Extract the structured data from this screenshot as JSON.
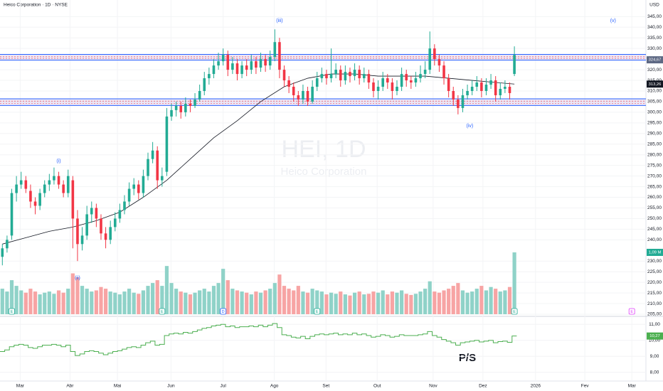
{
  "chart_data": {
    "type": "candlestick",
    "title": "Heico Corporation · 1D · NYSE",
    "currency": "USD",
    "watermark": "HEI, 1D",
    "watermark_sub": "Heico Corporation",
    "up_color": "#22ab94",
    "down_color": "#f23645",
    "volume_up_color": "#8fd2c8",
    "volume_down_color": "#f7a4a4",
    "ylim": [
      205,
      352.8
    ],
    "yticks": [
      {
        "value": 205,
        "label": "205,00"
      },
      {
        "value": 210,
        "label": "210,00"
      },
      {
        "value": 215,
        "label": "215,00"
      },
      {
        "value": 220,
        "label": "220,00"
      },
      {
        "value": 225,
        "label": "225,00"
      },
      {
        "value": 230,
        "label": "230,00"
      },
      {
        "value": 240,
        "label": "240,00"
      },
      {
        "value": 245,
        "label": "245,00"
      },
      {
        "value": 250,
        "label": "250,00"
      },
      {
        "value": 255,
        "label": "255,00"
      },
      {
        "value": 260,
        "label": "260,00"
      },
      {
        "value": 265,
        "label": "265,00"
      },
      {
        "value": 270,
        "label": "270,00"
      },
      {
        "value": 275,
        "label": "275,00"
      },
      {
        "value": 280,
        "label": "280,00"
      },
      {
        "value": 285,
        "label": "285,00"
      },
      {
        "value": 290,
        "label": "290,00"
      },
      {
        "value": 295,
        "label": "295,00"
      },
      {
        "value": 300,
        "label": "300,00"
      },
      {
        "value": 305,
        "label": "305,00"
      },
      {
        "value": 310,
        "label": "310,00"
      },
      {
        "value": 315,
        "label": "315,00"
      },
      {
        "value": 320,
        "label": "320,00"
      },
      {
        "value": 325,
        "label": "325,00"
      },
      {
        "value": 330,
        "label": "330,00"
      },
      {
        "value": 335,
        "label": "335,00"
      },
      {
        "value": 340,
        "label": "340,00"
      },
      {
        "value": 345,
        "label": "345,00"
      }
    ],
    "xlim": [
      -0.5,
      137
    ],
    "xticks": [
      {
        "value": 3.8,
        "label": "Mar"
      },
      {
        "value": 14.4,
        "label": "Abr"
      },
      {
        "value": 24.5,
        "label": "Mai"
      },
      {
        "value": 35.9,
        "label": "Jun"
      },
      {
        "value": 47,
        "label": "Jul"
      },
      {
        "value": 57.9,
        "label": "Ago"
      },
      {
        "value": 68.9,
        "label": "Set"
      },
      {
        "value": 79.8,
        "label": "Out"
      },
      {
        "value": 91.7,
        "label": "Nov"
      },
      {
        "value": 102.3,
        "label": "Dez"
      },
      {
        "value": 113.5,
        "label": "2026"
      },
      {
        "value": 124,
        "label": "Fev"
      },
      {
        "value": 134,
        "label": "Mar"
      }
    ],
    "candles": [
      [
        232,
        238,
        228,
        236
      ],
      [
        236,
        242,
        234,
        240
      ],
      [
        242,
        264,
        240,
        262
      ],
      [
        262,
        270,
        258,
        266
      ],
      [
        266,
        272,
        264,
        268
      ],
      [
        268,
        270,
        262,
        264
      ],
      [
        263,
        266,
        255,
        258
      ],
      [
        258,
        260,
        252,
        256
      ],
      [
        256,
        264,
        254,
        262
      ],
      [
        262,
        268,
        260,
        266
      ],
      [
        266,
        271,
        263,
        268
      ],
      [
        268,
        274,
        266,
        270
      ],
      [
        270,
        272,
        264,
        266
      ],
      [
        266,
        268,
        260,
        262
      ],
      [
        262,
        273,
        260,
        270
      ],
      [
        268,
        270,
        236,
        250
      ],
      [
        250,
        254,
        230,
        238
      ],
      [
        238,
        246,
        235,
        242
      ],
      [
        242,
        256,
        240,
        252
      ],
      [
        252,
        258,
        248,
        255
      ],
      [
        255,
        257,
        246,
        250
      ],
      [
        250,
        252,
        240,
        243
      ],
      [
        243,
        246,
        236,
        240
      ],
      [
        240,
        249,
        238,
        246
      ],
      [
        246,
        253,
        244,
        250
      ],
      [
        250,
        257,
        248,
        254
      ],
      [
        254,
        261,
        252,
        258
      ],
      [
        258,
        267,
        256,
        264
      ],
      [
        264,
        269,
        261,
        266
      ],
      [
        266,
        268,
        259,
        262
      ],
      [
        262,
        273,
        260,
        270
      ],
      [
        270,
        281,
        268,
        278
      ],
      [
        278,
        286,
        276,
        282
      ],
      [
        282,
        284,
        264,
        268
      ],
      [
        268,
        274,
        265,
        270
      ],
      [
        272,
        302,
        270,
        298
      ],
      [
        298,
        304,
        296,
        301
      ],
      [
        301,
        305,
        298,
        303
      ],
      [
        303,
        305,
        297,
        300
      ],
      [
        300,
        307,
        298,
        304
      ],
      [
        304,
        306,
        300,
        303
      ],
      [
        303,
        309,
        302,
        306
      ],
      [
        306,
        313,
        305,
        310
      ],
      [
        310,
        319,
        308,
        316
      ],
      [
        316,
        321,
        313,
        318
      ],
      [
        318,
        325,
        316,
        322
      ],
      [
        322,
        328,
        320,
        324
      ],
      [
        324,
        330,
        322,
        327
      ],
      [
        327,
        329,
        317,
        320
      ],
      [
        320,
        326,
        318,
        323
      ],
      [
        323,
        325,
        315,
        318
      ],
      [
        318,
        324,
        316,
        322
      ],
      [
        322,
        325,
        317,
        320
      ],
      [
        320,
        327,
        318,
        324
      ],
      [
        324,
        326,
        318,
        321
      ],
      [
        321,
        328,
        319,
        325
      ],
      [
        325,
        327,
        319,
        322
      ],
      [
        322,
        329,
        320,
        326
      ],
      [
        326,
        339,
        324,
        333
      ],
      [
        333,
        335,
        316,
        320
      ],
      [
        320,
        322,
        312,
        315
      ],
      [
        315,
        317,
        309,
        312
      ],
      [
        312,
        314,
        305,
        308
      ],
      [
        308,
        310,
        303,
        306
      ],
      [
        306,
        313,
        304,
        310
      ],
      [
        310,
        312,
        303,
        305
      ],
      [
        305,
        315,
        304,
        312
      ],
      [
        312,
        319,
        310,
        316
      ],
      [
        316,
        321,
        314,
        318
      ],
      [
        318,
        320,
        313,
        316
      ],
      [
        316,
        330,
        314,
        318
      ],
      [
        318,
        323,
        316,
        320
      ],
      [
        320,
        322,
        312,
        315
      ],
      [
        315,
        322,
        313,
        319
      ],
      [
        319,
        321,
        314,
        317
      ],
      [
        317,
        323,
        315,
        320
      ],
      [
        320,
        322,
        313,
        316
      ],
      [
        316,
        321,
        314,
        318
      ],
      [
        318,
        320,
        311,
        314
      ],
      [
        314,
        316,
        307,
        310
      ],
      [
        310,
        315,
        306,
        312
      ],
      [
        312,
        319,
        310,
        316
      ],
      [
        316,
        318,
        311,
        314
      ],
      [
        314,
        316,
        306,
        310
      ],
      [
        310,
        315,
        308,
        312
      ],
      [
        312,
        321,
        310,
        318
      ],
      [
        318,
        320,
        312,
        315
      ],
      [
        315,
        317,
        311,
        314
      ],
      [
        314,
        319,
        312,
        316
      ],
      [
        316,
        322,
        314,
        318
      ],
      [
        318,
        324,
        316,
        320
      ],
      [
        320,
        338,
        318,
        330
      ],
      [
        330,
        332,
        322,
        325
      ],
      [
        325,
        327,
        319,
        322
      ],
      [
        322,
        324,
        313,
        316
      ],
      [
        316,
        318,
        307,
        310
      ],
      [
        310,
        312,
        303,
        306
      ],
      [
        306,
        308,
        299,
        302
      ],
      [
        302,
        311,
        300,
        308
      ],
      [
        308,
        313,
        306,
        310
      ],
      [
        310,
        315,
        308,
        312
      ],
      [
        312,
        317,
        310,
        314
      ],
      [
        314,
        316,
        307,
        310
      ],
      [
        310,
        316,
        308,
        313
      ],
      [
        313,
        318,
        311,
        315
      ],
      [
        315,
        317,
        305,
        308
      ],
      [
        308,
        314,
        306,
        311
      ],
      [
        311,
        315,
        309,
        312
      ],
      [
        312,
        314,
        306,
        309
      ],
      [
        318,
        331,
        317,
        327
      ]
    ],
    "volume": [
      0.45,
      0.4,
      0.6,
      0.5,
      0.42,
      0.38,
      0.45,
      0.4,
      0.35,
      0.38,
      0.4,
      0.36,
      0.42,
      0.38,
      0.45,
      0.72,
      0.65,
      0.5,
      0.45,
      0.4,
      0.42,
      0.48,
      0.45,
      0.4,
      0.38,
      0.35,
      0.4,
      0.45,
      0.38,
      0.36,
      0.42,
      0.5,
      0.55,
      0.6,
      0.5,
      0.85,
      0.55,
      0.45,
      0.4,
      0.38,
      0.35,
      0.38,
      0.42,
      0.45,
      0.4,
      0.5,
      0.55,
      0.8,
      0.6,
      0.45,
      0.42,
      0.4,
      0.38,
      0.35,
      0.4,
      0.38,
      0.42,
      0.45,
      0.55,
      0.7,
      0.5,
      0.45,
      0.42,
      0.5,
      0.4,
      0.38,
      0.45,
      0.42,
      0.4,
      0.35,
      0.38,
      0.36,
      0.4,
      0.35,
      0.33,
      0.38,
      0.4,
      0.35,
      0.36,
      0.4,
      0.38,
      0.42,
      0.35,
      0.4,
      0.38,
      0.42,
      0.36,
      0.34,
      0.36,
      0.4,
      0.45,
      0.58,
      0.4,
      0.38,
      0.42,
      0.45,
      0.5,
      0.55,
      0.42,
      0.38,
      0.4,
      0.45,
      0.5,
      0.42,
      0.48,
      0.45,
      0.4,
      0.42,
      0.48,
      1.09
    ],
    "moving_average": {
      "color": "#131722",
      "x": [
        0,
        5,
        10,
        15,
        20,
        25,
        30,
        35,
        40,
        45,
        50,
        55,
        60,
        65,
        70,
        75,
        80,
        85,
        90,
        95,
        100,
        105,
        109
      ],
      "values": [
        238,
        241,
        244,
        246,
        249,
        253,
        260,
        268,
        278,
        288,
        296,
        305,
        312,
        316,
        318,
        318,
        317,
        317,
        317,
        316,
        315,
        314,
        313.26
      ]
    },
    "zones": [
      {
        "lower": 324.5,
        "upper": 327.2,
        "color": "#2962ff"
      },
      {
        "lower": 303.2,
        "upper": 306.3,
        "color": "#2962ff"
      }
    ],
    "tags": [
      {
        "pane": "price",
        "value": 324.67,
        "label": "324,67",
        "color": "#5d6883"
      },
      {
        "pane": "price",
        "value": 313.26,
        "label": "313,26",
        "color": "#131722"
      },
      {
        "pane": "volume",
        "value": 1.09,
        "label": "1,09 M",
        "color": "#22ab94"
      },
      {
        "pane": "ps",
        "value": 10.27,
        "label": "10,27",
        "color": "#4caf50"
      }
    ],
    "annotations": [
      {
        "text": "(i)",
        "x": 12,
        "y": 277
      },
      {
        "text": "(ii)",
        "x": 16,
        "y": 222
      },
      {
        "text": "(iii)",
        "x": 59,
        "y": 343
      },
      {
        "text": "(iv)",
        "x": 99.5,
        "y": 293.6
      },
      {
        "text": "(v)",
        "x": 130,
        "y": 343
      }
    ],
    "events": [
      {
        "x": 2,
        "label": "E"
      },
      {
        "x": 34,
        "label": "E"
      },
      {
        "x": 47,
        "label": "D"
      },
      {
        "x": 67,
        "label": "E"
      },
      {
        "x": 109,
        "label": "E"
      },
      {
        "x": 134,
        "label": "E"
      }
    ],
    "ps": {
      "title": "P/S",
      "color": "#4caf50",
      "ylim": [
        7.5,
        11.5
      ],
      "yticks": [
        {
          "value": 8,
          "label": "8,00"
        },
        {
          "value": 9,
          "label": "9,00"
        },
        {
          "value": 10,
          "label": "10,00"
        },
        {
          "value": 11,
          "label": "11,00"
        }
      ],
      "values": [
        9.3,
        9.4,
        9.6,
        9.7,
        9.75,
        9.7,
        9.55,
        9.5,
        9.6,
        9.7,
        9.7,
        9.75,
        9.7,
        9.6,
        9.7,
        9.3,
        9.05,
        9.15,
        9.3,
        9.35,
        9.3,
        9.2,
        9.1,
        9.2,
        9.3,
        9.35,
        9.45,
        9.55,
        9.6,
        9.55,
        9.7,
        9.85,
        9.95,
        9.7,
        9.75,
        10.3,
        10.4,
        10.45,
        10.4,
        10.5,
        10.45,
        10.55,
        10.65,
        10.75,
        10.8,
        10.9,
        10.95,
        11.0,
        10.85,
        10.9,
        10.8,
        10.85,
        10.85,
        10.9,
        10.85,
        10.95,
        10.85,
        10.95,
        11.05,
        10.8,
        10.35,
        10.3,
        10.2,
        10.15,
        10.25,
        10.1,
        10.25,
        10.35,
        10.4,
        10.35,
        10.4,
        10.45,
        10.35,
        10.4,
        10.35,
        10.45,
        10.35,
        10.4,
        10.3,
        10.2,
        10.25,
        10.35,
        10.3,
        10.2,
        10.25,
        10.35,
        10.3,
        10.3,
        10.3,
        10.35,
        10.4,
        10.55,
        10.3,
        10.2,
        10.05,
        9.95,
        9.85,
        9.7,
        9.85,
        9.9,
        9.95,
        10.0,
        9.9,
        9.95,
        10.0,
        9.85,
        9.92,
        9.95,
        9.88,
        10.27
      ]
    }
  }
}
